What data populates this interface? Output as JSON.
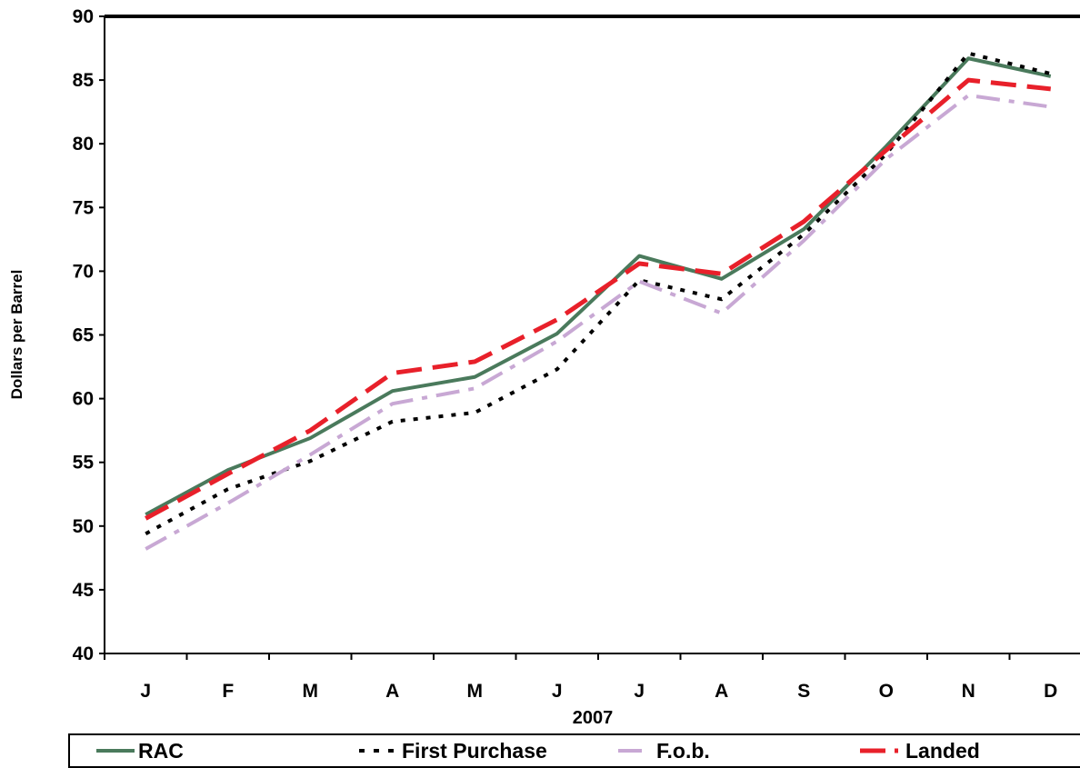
{
  "chart_data": {
    "type": "line",
    "title": "",
    "xlabel": "2007",
    "ylabel": "Dollars per Barrel",
    "ylim": [
      40,
      90
    ],
    "yticks": [
      40,
      45,
      50,
      55,
      60,
      65,
      70,
      75,
      80,
      85,
      90
    ],
    "categories": [
      "J",
      "F",
      "M",
      "A",
      "M",
      "J",
      "J",
      "A",
      "S",
      "O",
      "N",
      "D"
    ],
    "grid": false,
    "legend_position": "bottom",
    "series": [
      {
        "name": "RAC",
        "color": "#4a7a5c",
        "dash": "solid",
        "values": [
          50.9,
          54.4,
          56.9,
          60.6,
          61.7,
          65.1,
          71.2,
          69.4,
          73.3,
          79.8,
          86.7,
          85.3
        ]
      },
      {
        "name": "First Purchase",
        "color": "#000000",
        "dash": "dotted",
        "values": [
          49.4,
          52.9,
          55.1,
          58.2,
          58.9,
          62.3,
          69.3,
          67.8,
          72.9,
          79.2,
          87.1,
          85.5
        ]
      },
      {
        "name": "F.o.b.",
        "color": "#c8a8d4",
        "dash": "dash-dot",
        "values": [
          48.2,
          51.8,
          55.6,
          59.6,
          60.8,
          64.5,
          69.2,
          66.7,
          72.4,
          78.8,
          83.8,
          82.9
        ]
      },
      {
        "name": "Landed",
        "color": "#e8202a",
        "dash": "dashed",
        "values": [
          50.6,
          54.1,
          57.5,
          62.0,
          62.9,
          66.2,
          70.6,
          69.8,
          73.9,
          79.5,
          85.0,
          84.3
        ]
      }
    ]
  }
}
